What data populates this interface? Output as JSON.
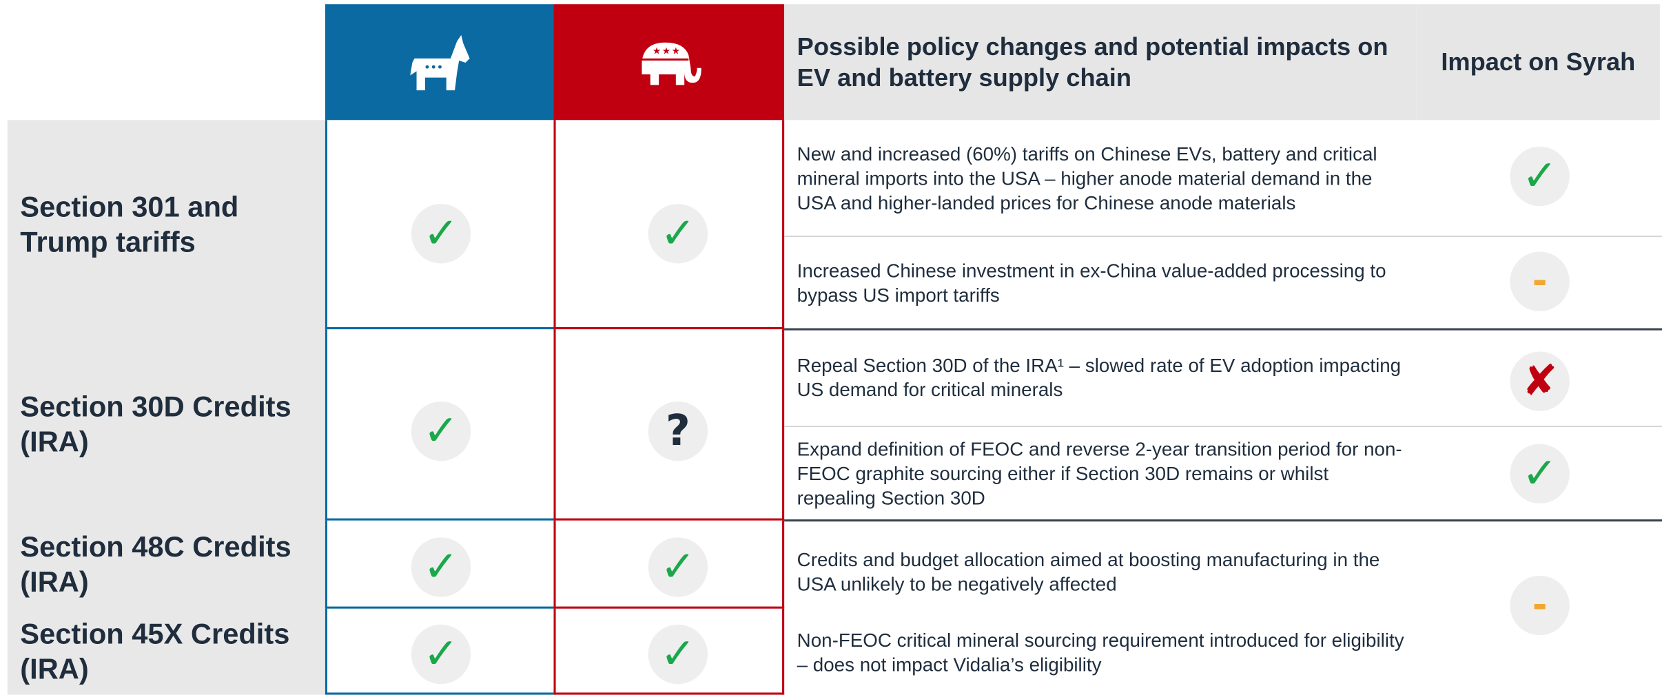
{
  "header": {
    "policy": "Possible policy changes and potential impacts on EV and battery supply chain",
    "impact": "Impact on Syrah"
  },
  "rows": [
    {
      "label": "Section 301 and Trump tariffs",
      "democrat": "✓",
      "republican": "✓"
    },
    {
      "label": "Section 30D Credits (IRA)",
      "democrat": "✓",
      "republican": "?"
    },
    {
      "label": "Section 48C Credits (IRA)",
      "democrat": "✓",
      "republican": "✓"
    },
    {
      "label": "Section 45X Credits (IRA)",
      "democrat": "✓",
      "republican": "✓"
    }
  ],
  "impacts": [
    {
      "texts": [
        "New and increased (60%) tariffs on Chinese EVs, battery and critical mineral imports into the USA – higher anode material demand in the USA and higher-landed prices for Chinese anode materials"
      ],
      "mark": "✓"
    },
    {
      "texts": [
        "Increased Chinese investment in ex-China value-added processing to bypass US import tariffs"
      ],
      "mark": "-"
    },
    {
      "texts": [
        "Repeal Section 30D of the IRA¹ – slowed rate of EV adoption impacting US demand for critical minerals"
      ],
      "mark": "✘"
    },
    {
      "texts": [
        "Expand definition of FEOC and reverse 2-year transition period for non-FEOC graphite sourcing either if Section 30D remains or whilst repealing Section 30D"
      ],
      "mark": "✓"
    },
    {
      "texts": [
        "Credits and budget allocation aimed at boosting manufacturing in the USA unlikely to be negatively affected",
        "Non-FEOC critical mineral sourcing requirement introduced for eligibility – does not impact Vidalia’s eligibility"
      ],
      "mark": "-"
    }
  ]
}
